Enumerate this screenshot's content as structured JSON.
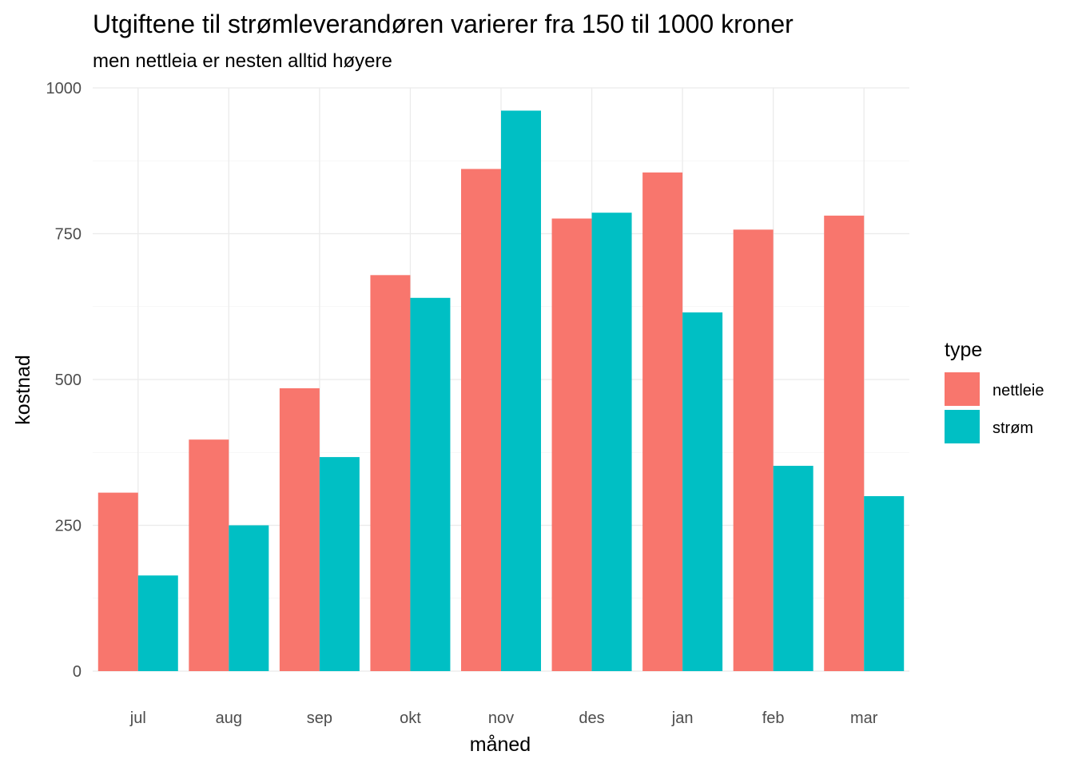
{
  "chart_data": {
    "type": "bar",
    "title": "Utgiftene til strømleverandøren varierer fra 150 til 1000 kroner",
    "subtitle": "men nettleia er nesten alltid høyere",
    "xlabel": "måned",
    "ylabel": "kostnad",
    "categories": [
      "jul",
      "aug",
      "sep",
      "okt",
      "nov",
      "des",
      "jan",
      "feb",
      "mar"
    ],
    "series": [
      {
        "name": "nettleie",
        "color": "#F8766D",
        "values": [
          306,
          397,
          485,
          679,
          861,
          776,
          855,
          757,
          781
        ]
      },
      {
        "name": "strøm",
        "color": "#00BFC4",
        "values": [
          164,
          250,
          367,
          640,
          961,
          786,
          615,
          352,
          300
        ]
      }
    ],
    "ylim": [
      0,
      1000
    ],
    "yticks": [
      0,
      250,
      500,
      750,
      1000
    ],
    "grid": true,
    "legend": {
      "title": "type",
      "position": "right"
    }
  }
}
